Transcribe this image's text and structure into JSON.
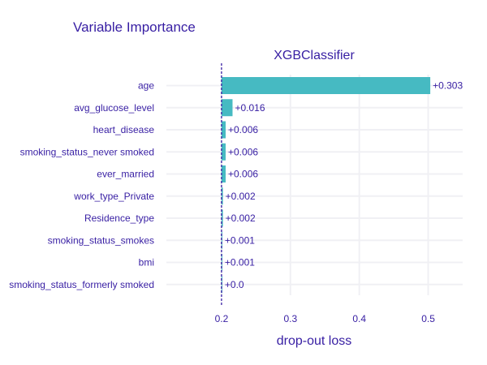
{
  "chart_data": {
    "type": "bar",
    "orientation": "horizontal",
    "title": "Variable Importance",
    "subtitle": "XGBClassifier",
    "xlabel": "drop-out loss",
    "baseline": 0.2,
    "xlim": [
      0.12,
      0.55
    ],
    "xticks": [
      0.2,
      0.3,
      0.4,
      0.5
    ],
    "xtick_labels": [
      "0.2",
      "0.3",
      "0.4",
      "0.5"
    ],
    "categories": [
      "age",
      "avg_glucose_level",
      "heart_disease",
      "smoking_status_never smoked",
      "ever_married",
      "work_type_Private",
      "Residence_type",
      "smoking_status_smokes",
      "bmi",
      "smoking_status_formerly smoked"
    ],
    "values": [
      0.303,
      0.016,
      0.006,
      0.006,
      0.006,
      0.002,
      0.002,
      0.001,
      0.001,
      0.0
    ],
    "data_labels": [
      "+0.303",
      "+0.016",
      "+0.006",
      "+0.006",
      "+0.006",
      "+0.002",
      "+0.002",
      "+0.001",
      "+0.001",
      "+0.0"
    ],
    "bar_color": "#46bac2",
    "baseline_color": "#371ea3",
    "text_color": "#371ea3",
    "grid_color": "#f0f0f4",
    "grid": true,
    "legend": "none"
  }
}
